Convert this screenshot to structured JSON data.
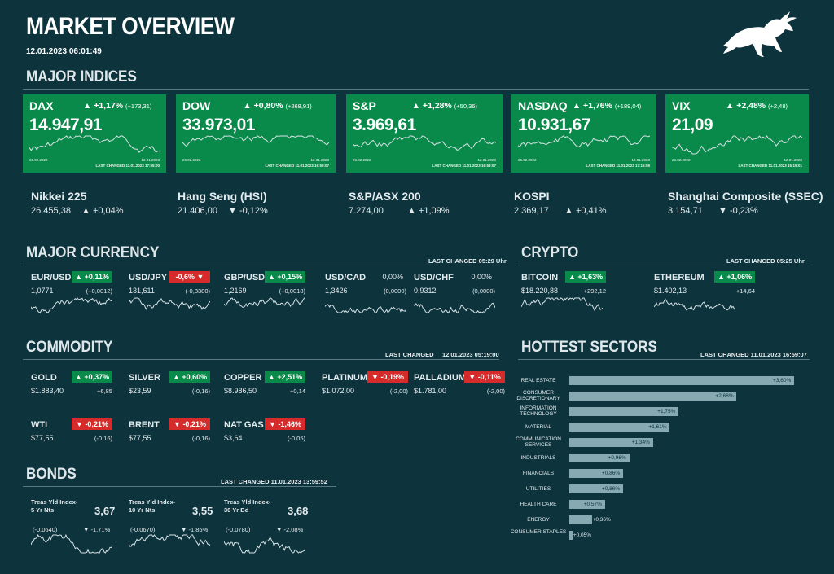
{
  "header": {
    "title": "MARKET OVERVIEW",
    "timestamp": "12.01.2023 06:01:49",
    "logo": "bull-icon"
  },
  "sections": {
    "indices": "MAJOR INDICES",
    "currency": "MAJOR CURRENCY",
    "currency_last_changed": "LAST CHANGED 05:29 Uhr",
    "crypto": "CRYPTO",
    "crypto_last_changed": "LAST CHANGED 05:25 Uhr",
    "commodity": "COMMODITY",
    "commodity_last_changed_label": "LAST CHANGED",
    "commodity_last_changed": "12.01.2023 05:19:00",
    "sectors": "HOTTEST SECTORS",
    "sectors_last_changed": "LAST CHANGED 11.01.2023 16:59:07",
    "bonds": "BONDS",
    "bonds_last_changed": "LAST CHANGED 11.01.2023 13:59:52"
  },
  "major_indices": [
    {
      "name": "DAX",
      "change": "▲ +1,17%",
      "abs": "(+173,31)",
      "value": "14.947,91",
      "start": "26.02.2022",
      "end": "12.01.2023",
      "last": "LAST CHANGED 11.01.2023 17:55:00"
    },
    {
      "name": "DOW",
      "change": "▲ +0,80%",
      "abs": "(+268,91)",
      "value": "33.973,01",
      "start": "26.02.2022",
      "end": "12.01.2023",
      "last": "LAST CHANGED 11.01.2023 16:59:07"
    },
    {
      "name": "S&P",
      "change": "▲ +1,28%",
      "abs": "(+50,36)",
      "value": "3.969,61",
      "start": "26.02.2022",
      "end": "12.01.2023",
      "last": "LAST CHANGED 11.01.2023 16:59:07"
    },
    {
      "name": "NASDAQ",
      "change": "▲ +1,76%",
      "abs": "(+189,04)",
      "value": "10.931,67",
      "start": "26.02.2022",
      "end": "12.01.2023",
      "last": "LAST CHANGED 11.01.2023 17:15:59"
    },
    {
      "name": "VIX",
      "change": "▲ +2,48%",
      "abs": "(+2,48)",
      "value": "21,09",
      "start": "26.02.2022",
      "end": "12.01.2023",
      "last": "LAST CHANGED 11.01.2023 15:15:01"
    }
  ],
  "other_indices": [
    {
      "name": "Nikkei 225",
      "value": "26.455,38",
      "change": "▲ +0,04%"
    },
    {
      "name": "Hang Seng (HSI)",
      "value": "21.406,00",
      "change": "▼ -0,12%"
    },
    {
      "name": "S&P/ASX 200",
      "value": "7.274,00",
      "change": "▲ +1,09%"
    },
    {
      "name": "KOSPI",
      "value": "2.369,17",
      "change": "▲ +0,41%"
    },
    {
      "name": "Shanghai Composite (SSEC)",
      "value": "3.154,71",
      "change": "▼ -0,23%"
    }
  ],
  "currencies": [
    {
      "name": "EUR/USD",
      "badge": "▲ +0,11%",
      "dir": "up",
      "value": "1,0771",
      "abs": "(+0,0012)"
    },
    {
      "name": "USD/JPY",
      "badge": "-0,6% ▼",
      "dir": "dn",
      "value": "131,611",
      "abs": "(-0,8380)"
    },
    {
      "name": "GBP/USD",
      "badge": "▲ +0,15%",
      "dir": "up",
      "value": "1,2169",
      "abs": "(+0,0018)"
    },
    {
      "name": "USD/CAD",
      "badge": "0,00%",
      "dir": "flat",
      "value": "1,3426",
      "abs": "(0,0000)"
    },
    {
      "name": "USD/CHF",
      "badge": "0,00%",
      "dir": "flat",
      "value": "0,9312",
      "abs": "(0,0000)"
    }
  ],
  "crypto": [
    {
      "name": "BITCOIN",
      "badge": "▲ +1,63%",
      "value": "$18.220,88",
      "abs": "+292,12"
    },
    {
      "name": "ETHEREUM",
      "badge": "▲ +1,06%",
      "value": "$1.402,13",
      "abs": "+14,64"
    }
  ],
  "commodities": [
    {
      "name": "GOLD",
      "badge": "▲ +0,37%",
      "dir": "up",
      "value": "$1.883,40",
      "abs": "+6,85"
    },
    {
      "name": "SILVER",
      "badge": "▲ +0,60%",
      "dir": "up",
      "value": "$23,59",
      "abs": "(-0,16)"
    },
    {
      "name": "COPPER",
      "badge": "▲ +2,51%",
      "dir": "up",
      "value": "$8.986,50",
      "abs": "+0,14"
    },
    {
      "name": "PLATINUM",
      "badge": "▼ -0,19%",
      "dir": "dn",
      "value": "$1.072,00",
      "abs": "(-2,00)"
    },
    {
      "name": "PALLADIUM",
      "badge": "▼ -0,11%",
      "dir": "dn",
      "value": "$1.781,00",
      "abs": "(-2,00)"
    },
    {
      "name": "WTI",
      "badge": "▼ -0,21%",
      "dir": "dn",
      "value": "$77,55",
      "abs": "(-0,16)"
    },
    {
      "name": "BRENT",
      "badge": "▼ -0,21%",
      "dir": "dn",
      "value": "$77,55",
      "abs": "(-0,16)"
    },
    {
      "name": "NAT GAS",
      "badge": "▼ -1,46%",
      "dir": "dn",
      "value": "$3,64",
      "abs": "(-0,05)"
    }
  ],
  "bonds": [
    {
      "name": "Treas Yld Index-5 Yr Nts",
      "value": "3,67",
      "abs": "(-0,0640)",
      "change": "▼ -1,71%"
    },
    {
      "name": "Treas Yld Index-10 Yr Nts",
      "value": "3,55",
      "abs": "(-0,0670)",
      "change": "▼ -1,85%"
    },
    {
      "name": "Treas Yld Index-30 Yr Bd",
      "value": "3,68",
      "abs": "(-0,0780)",
      "change": "▼ -2,08%"
    }
  ],
  "chart_data": {
    "type": "bar",
    "title": "HOTTEST SECTORS",
    "categories": [
      "REAL ESTATE",
      "CONSUMER DISCRETIONARY",
      "INFORMATION TECHNOLOGY",
      "MATERIAL",
      "COMMUNICATION SERVICES",
      "INDUSTRIALS",
      "FINANCIALS",
      "UTILITIES",
      "HEALTH CARE",
      "ENERGY",
      "CONSUMER STAPLES"
    ],
    "values": [
      3.6,
      2.68,
      1.75,
      1.61,
      1.34,
      0.96,
      0.86,
      0.86,
      0.57,
      0.36,
      0.05
    ],
    "labels": [
      "+3,60%",
      "+2,68%",
      "+1,75%",
      "+1,61%",
      "+1,34%",
      "+0,96%",
      "+0,86%",
      "+0,86%",
      "+0,57%",
      "+0,36%",
      "+0,05%"
    ],
    "bar_color": "#87aab2"
  },
  "colors": {
    "background": "#0d333d",
    "up": "#0a8a4a",
    "down": "#d52b2b"
  }
}
